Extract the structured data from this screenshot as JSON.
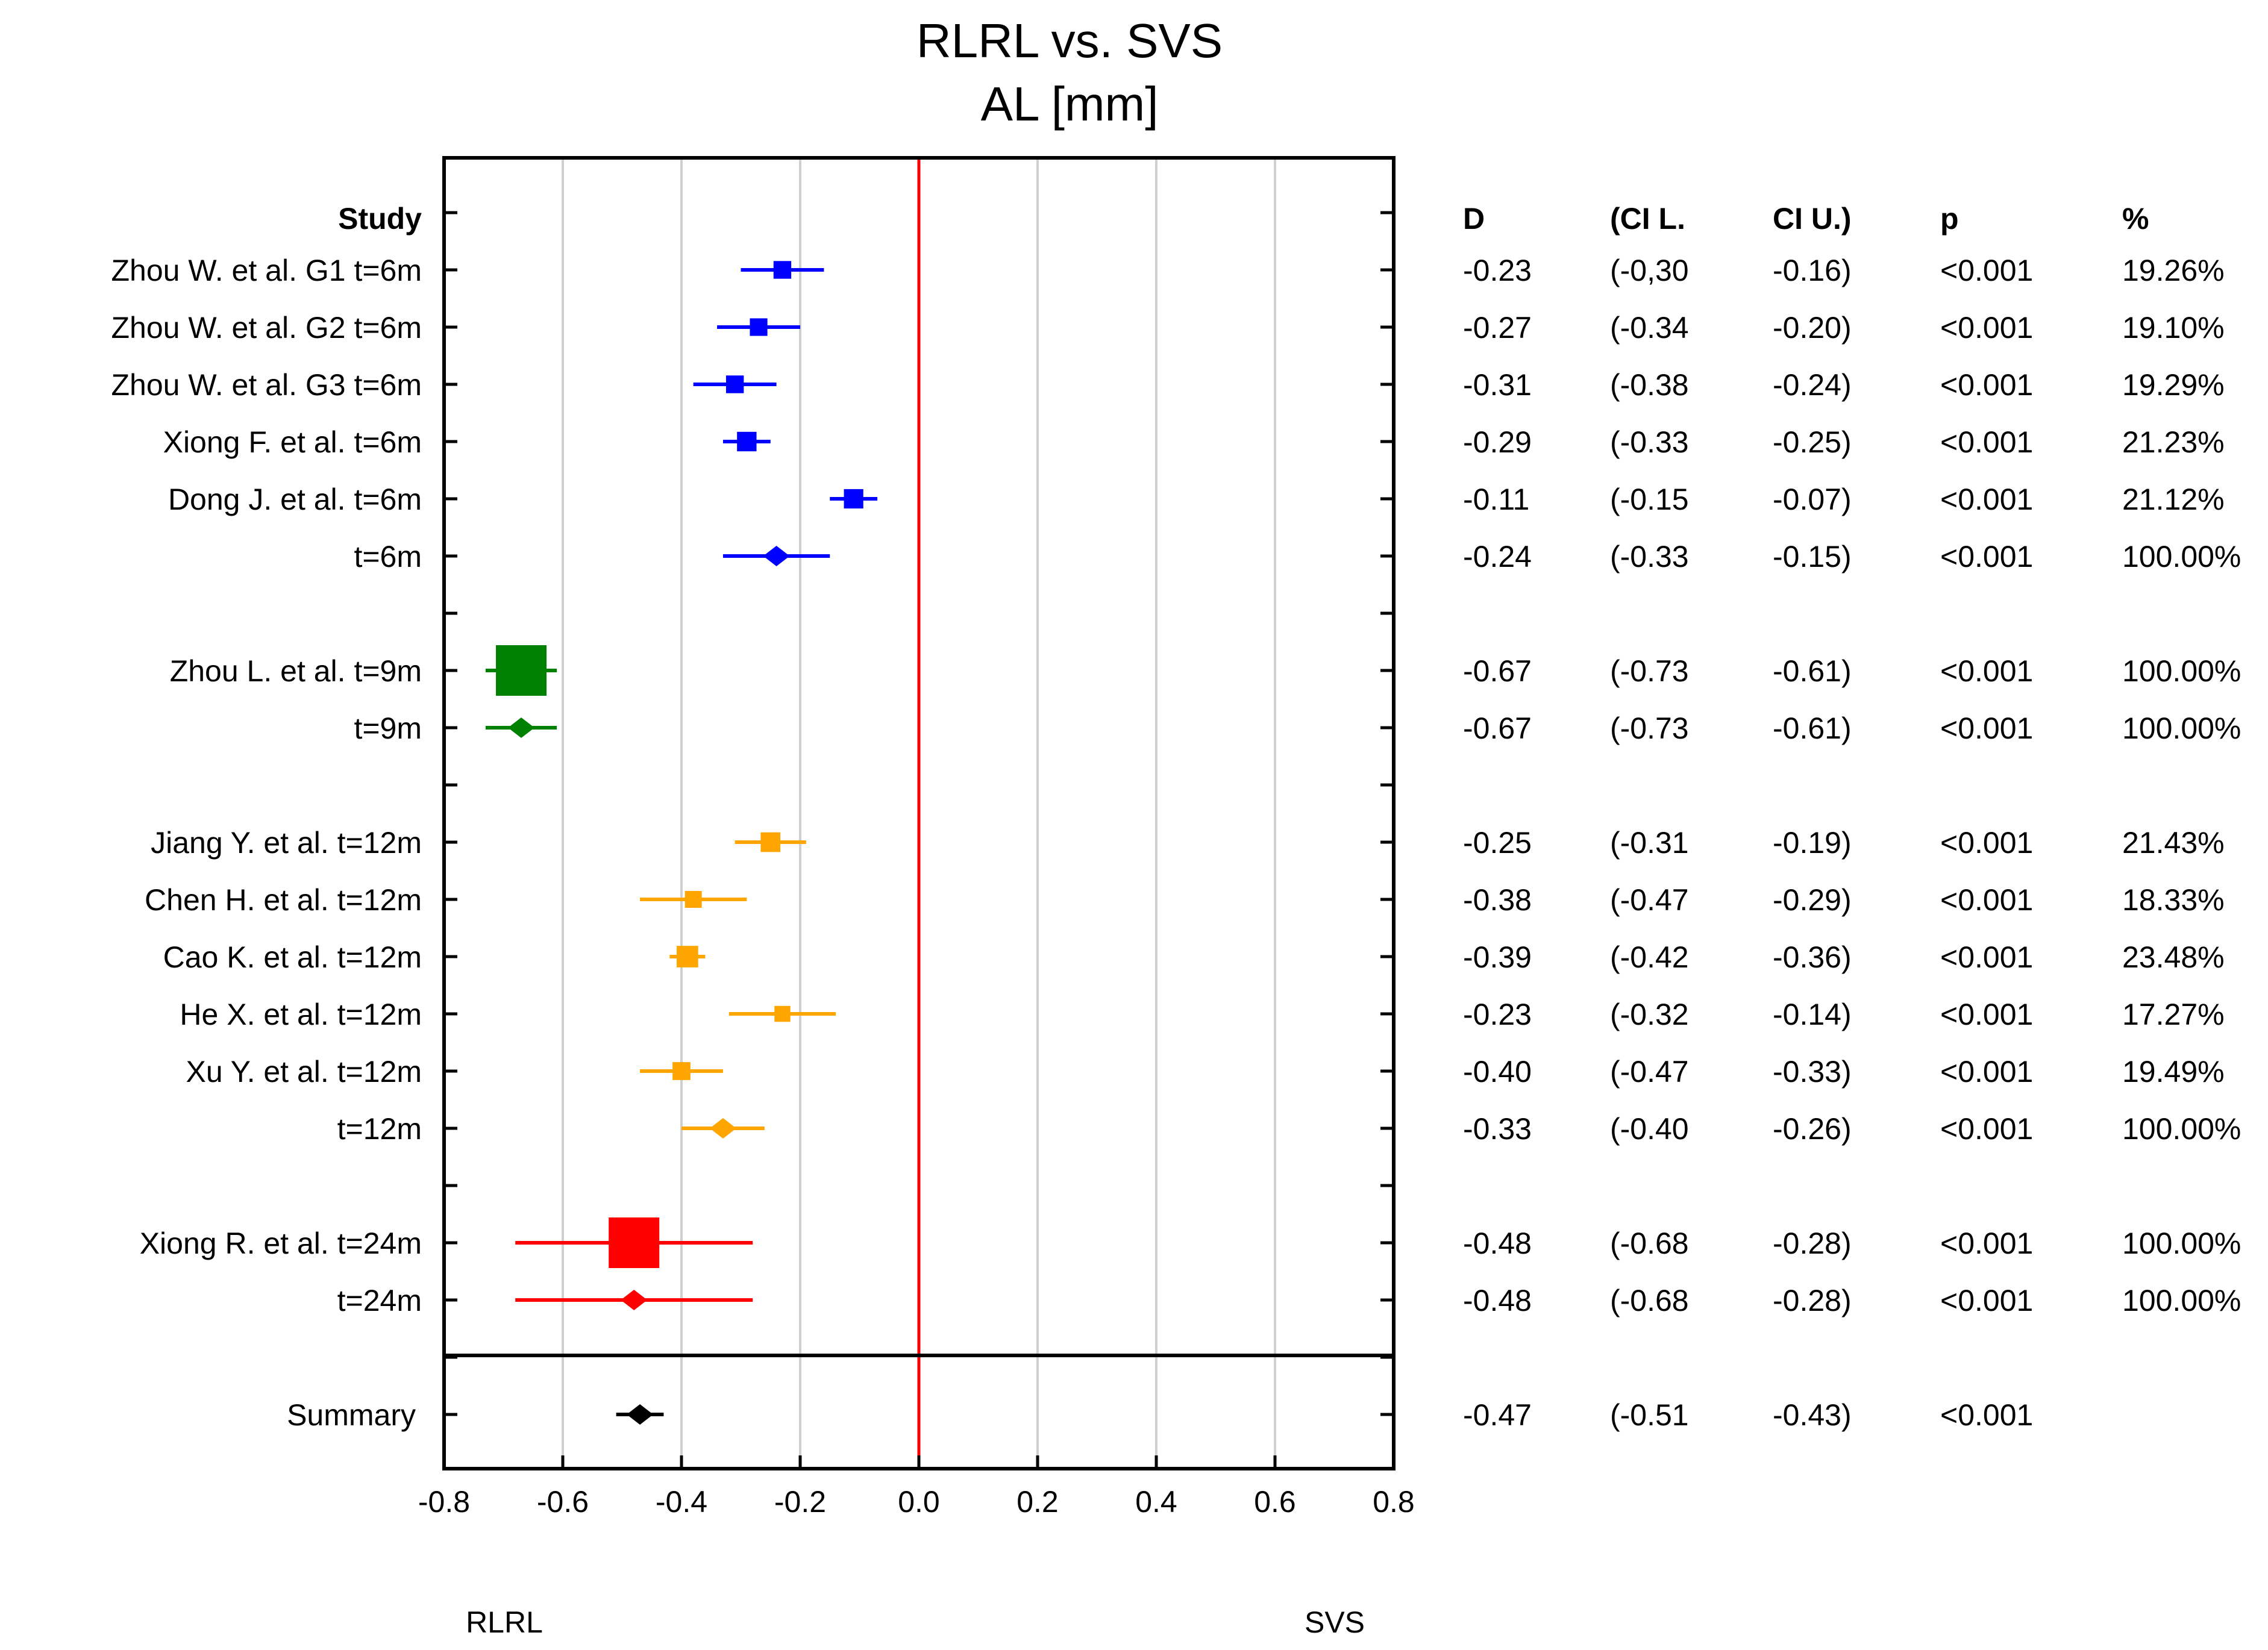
{
  "chart_data": {
    "type": "forest",
    "title": "RLRL vs. SVS",
    "subtitle": "AL [mm]",
    "xlim": [
      -0.8,
      0.8
    ],
    "xticks": [
      "-0.8",
      "-0.6",
      "-0.4",
      "-0.2",
      "0.0",
      "0.2",
      "0.4",
      "0.6",
      "0.8"
    ],
    "left_label": "RLRL",
    "right_label": "SVS",
    "reference_line": 0,
    "grid": true,
    "colors": {
      "t6": "#0000ff",
      "t9": "#008000",
      "t12": "#ffa500",
      "t24": "#ff0000",
      "summary": "#000000",
      "reference": "#ff0000"
    },
    "headers": {
      "study": "Study",
      "d": "D",
      "cil": "(CI L.",
      "ciu": "CI U.)",
      "p": "p",
      "weight": "%"
    },
    "rows": [
      {
        "label": "Zhou W. et al.  G1 t=6m",
        "d": -0.23,
        "lo": -0.3,
        "hi": -0.16,
        "d_text": "-0.23",
        "cil_text": "(-0,30",
        "ciu_text": "-0.16)",
        "p_text": "<0.001",
        "w_text": "19.26%",
        "weight": 19.26,
        "group": "t6",
        "marker": "square"
      },
      {
        "label": "Zhou W. et al. G2 t=6m",
        "d": -0.27,
        "lo": -0.34,
        "hi": -0.2,
        "d_text": "-0.27",
        "cil_text": "(-0.34",
        "ciu_text": "-0.20)",
        "p_text": "<0.001",
        "w_text": "19.10%",
        "weight": 19.1,
        "group": "t6",
        "marker": "square"
      },
      {
        "label": "Zhou W. et al. G3 t=6m",
        "d": -0.31,
        "lo": -0.38,
        "hi": -0.24,
        "d_text": "-0.31",
        "cil_text": "(-0.38",
        "ciu_text": "-0.24)",
        "p_text": "<0.001",
        "w_text": "19.29%",
        "weight": 19.29,
        "group": "t6",
        "marker": "square"
      },
      {
        "label": "Xiong F. et al. t=6m",
        "d": -0.29,
        "lo": -0.33,
        "hi": -0.25,
        "d_text": "-0.29",
        "cil_text": "(-0.33",
        "ciu_text": "-0.25)",
        "p_text": "<0.001",
        "w_text": "21.23%",
        "weight": 21.23,
        "group": "t6",
        "marker": "square"
      },
      {
        "label": "Dong J. et al. t=6m",
        "d": -0.11,
        "lo": -0.15,
        "hi": -0.07,
        "d_text": "-0.11",
        "cil_text": "(-0.15",
        "ciu_text": "-0.07)",
        "p_text": "<0.001",
        "w_text": "21.12%",
        "weight": 21.12,
        "group": "t6",
        "marker": "square"
      },
      {
        "label": "t=6m",
        "d": -0.24,
        "lo": -0.33,
        "hi": -0.15,
        "d_text": "-0.24",
        "cil_text": "(-0.33",
        "ciu_text": "-0.15)",
        "p_text": "<0.001",
        "w_text": "100.00%",
        "weight": 100,
        "group": "t6",
        "marker": "diamond"
      },
      {
        "label": "Zhou L. et al. t=9m",
        "d": -0.67,
        "lo": -0.73,
        "hi": -0.61,
        "d_text": "-0.67",
        "cil_text": "(-0.73",
        "ciu_text": "-0.61)",
        "p_text": "<0.001",
        "w_text": "100.00%",
        "weight": 100,
        "group": "t9",
        "marker": "square"
      },
      {
        "label": "t=9m",
        "d": -0.67,
        "lo": -0.73,
        "hi": -0.61,
        "d_text": "-0.67",
        "cil_text": "(-0.73",
        "ciu_text": "-0.61)",
        "p_text": "<0.001",
        "w_text": "100.00%",
        "weight": 100,
        "group": "t9",
        "marker": "diamond"
      },
      {
        "label": "Jiang Y. et al.  t=12m",
        "d": -0.25,
        "lo": -0.31,
        "hi": -0.19,
        "d_text": "-0.25",
        "cil_text": "(-0.31",
        "ciu_text": "-0.19)",
        "p_text": "<0.001",
        "w_text": "21.43%",
        "weight": 21.43,
        "group": "t12",
        "marker": "square"
      },
      {
        "label": "Chen H. et al. t=12m",
        "d": -0.38,
        "lo": -0.47,
        "hi": -0.29,
        "d_text": "-0.38",
        "cil_text": "(-0.47",
        "ciu_text": "-0.29)",
        "p_text": "<0.001",
        "w_text": "18.33%",
        "weight": 18.33,
        "group": "t12",
        "marker": "square"
      },
      {
        "label": "Cao K. et al.  t=12m",
        "d": -0.39,
        "lo": -0.42,
        "hi": -0.36,
        "d_text": "-0.39",
        "cil_text": "(-0.42",
        "ciu_text": "-0.36)",
        "p_text": "<0.001",
        "w_text": "23.48%",
        "weight": 23.48,
        "group": "t12",
        "marker": "square"
      },
      {
        "label": "He X. et al. t=12m",
        "d": -0.23,
        "lo": -0.32,
        "hi": -0.14,
        "d_text": "-0.23",
        "cil_text": "(-0.32",
        "ciu_text": "-0.14)",
        "p_text": "<0.001",
        "w_text": "17.27%",
        "weight": 17.27,
        "group": "t12",
        "marker": "square"
      },
      {
        "label": "Xu Y. et al. t=12m",
        "d": -0.4,
        "lo": -0.47,
        "hi": -0.33,
        "d_text": "-0.40",
        "cil_text": "(-0.47",
        "ciu_text": "-0.33)",
        "p_text": "<0.001",
        "w_text": "19.49%",
        "weight": 19.49,
        "group": "t12",
        "marker": "square"
      },
      {
        "label": "t=12m",
        "d": -0.33,
        "lo": -0.4,
        "hi": -0.26,
        "d_text": "-0.33",
        "cil_text": "(-0.40",
        "ciu_text": "-0.26)",
        "p_text": "<0.001",
        "w_text": "100.00%",
        "weight": 100,
        "group": "t12",
        "marker": "diamond"
      },
      {
        "label": "Xiong R. et al. t=24m",
        "d": -0.48,
        "lo": -0.68,
        "hi": -0.28,
        "d_text": "-0.48",
        "cil_text": "(-0.68",
        "ciu_text": "-0.28)",
        "p_text": "<0.001",
        "w_text": "100.00%",
        "weight": 100,
        "group": "t24",
        "marker": "square"
      },
      {
        "label": "t=24m",
        "d": -0.48,
        "lo": -0.68,
        "hi": -0.28,
        "d_text": "-0.48",
        "cil_text": "(-0.68",
        "ciu_text": "-0.28)",
        "p_text": "<0.001",
        "w_text": "100.00%",
        "weight": 100,
        "group": "t24",
        "marker": "diamond"
      },
      {
        "label": "Summary",
        "d": -0.47,
        "lo": -0.51,
        "hi": -0.43,
        "d_text": "-0.47",
        "cil_text": "(-0.51",
        "ciu_text": "-0.43)",
        "p_text": "<0.001",
        "w_text": "",
        "weight": 0,
        "group": "summary",
        "marker": "diamond"
      }
    ]
  }
}
